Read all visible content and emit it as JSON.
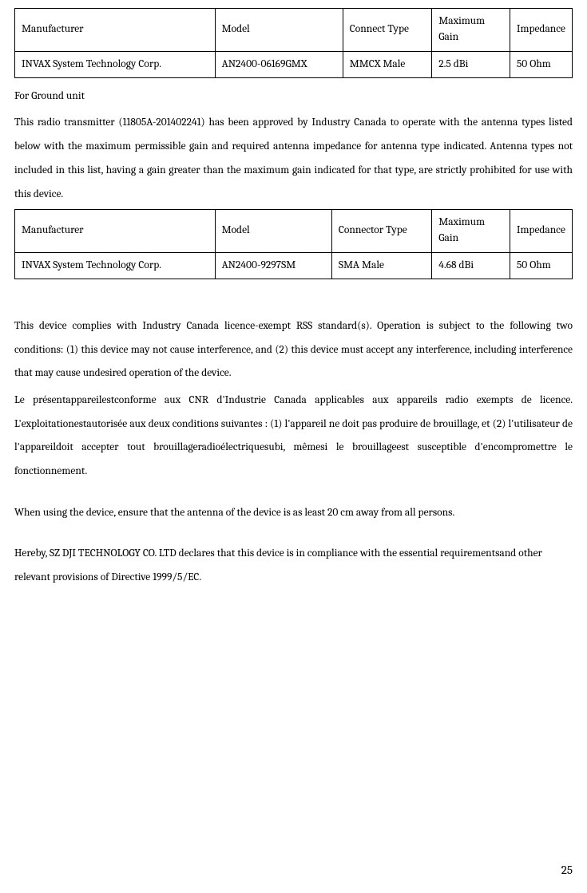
{
  "table1": {
    "headers": [
      "Manufacturer",
      "Model",
      "Connect Type",
      "Maximum Gain",
      "Impedance"
    ],
    "row": [
      "INVAX System Technology Corp.",
      "AN2400-06169GMX",
      "MMCX Male",
      "2.5 dBi",
      "50 Ohm"
    ],
    "col_widths": [
      "36%",
      "23%",
      "16%",
      "14%",
      "11%"
    ]
  },
  "para1_label": "For Ground unit",
  "para2": "This radio transmitter (11805A-201402241) has been approved by Industry Canada to operate with the antenna types listed below with the maximum permissible gain and required antenna impedance for antenna type indicated. Antenna types not included in this list, having a gain greater than the maximum gain indicated for that type, are strictly prohibited for use with this device.",
  "table2": {
    "headers": [
      "Manufacturer",
      "Model",
      "Connector Type",
      "Maximum Gain",
      "Impedance"
    ],
    "row": [
      "INVAX System Technology Corp.",
      "AN2400-9297SM",
      "SMA Male",
      "4.68 dBi",
      "50 Ohm"
    ],
    "col_widths": [
      "36%",
      "21%",
      "18%",
      "14%",
      "11%"
    ]
  },
  "para3": "This device complies with Industry Canada licence-exempt RSS standard(s). Operation is subject to the following two conditions: (1) this device may not cause interference, and (2) this device must accept any interference, including interference that may cause undesired operation of the device.",
  "para4": "Le présentappareilestconforme aux CNR d'Industrie Canada applicables aux appareils radio exempts de licence. L'exploitationestautorisée aux deux conditions suivantes : (1) l'appareil ne doit pas produire de brouillage, et (2) l'utilisateur de l'appareildoit accepter tout brouillageradioélectriquesubi, mêmesi le brouillageest susceptible d'encompromettre le fonctionnement.",
  "para5": "When using the device, ensure that the antenna of the device is as least 20 cm away from all persons.",
  "para6": "Hereby, SZ DJI TECHNOLOGY CO. LTD declares that this device is in compliance with the essential requirementsand other relevant provisions of Directive 1999/5/EC.",
  "page_number": "25"
}
